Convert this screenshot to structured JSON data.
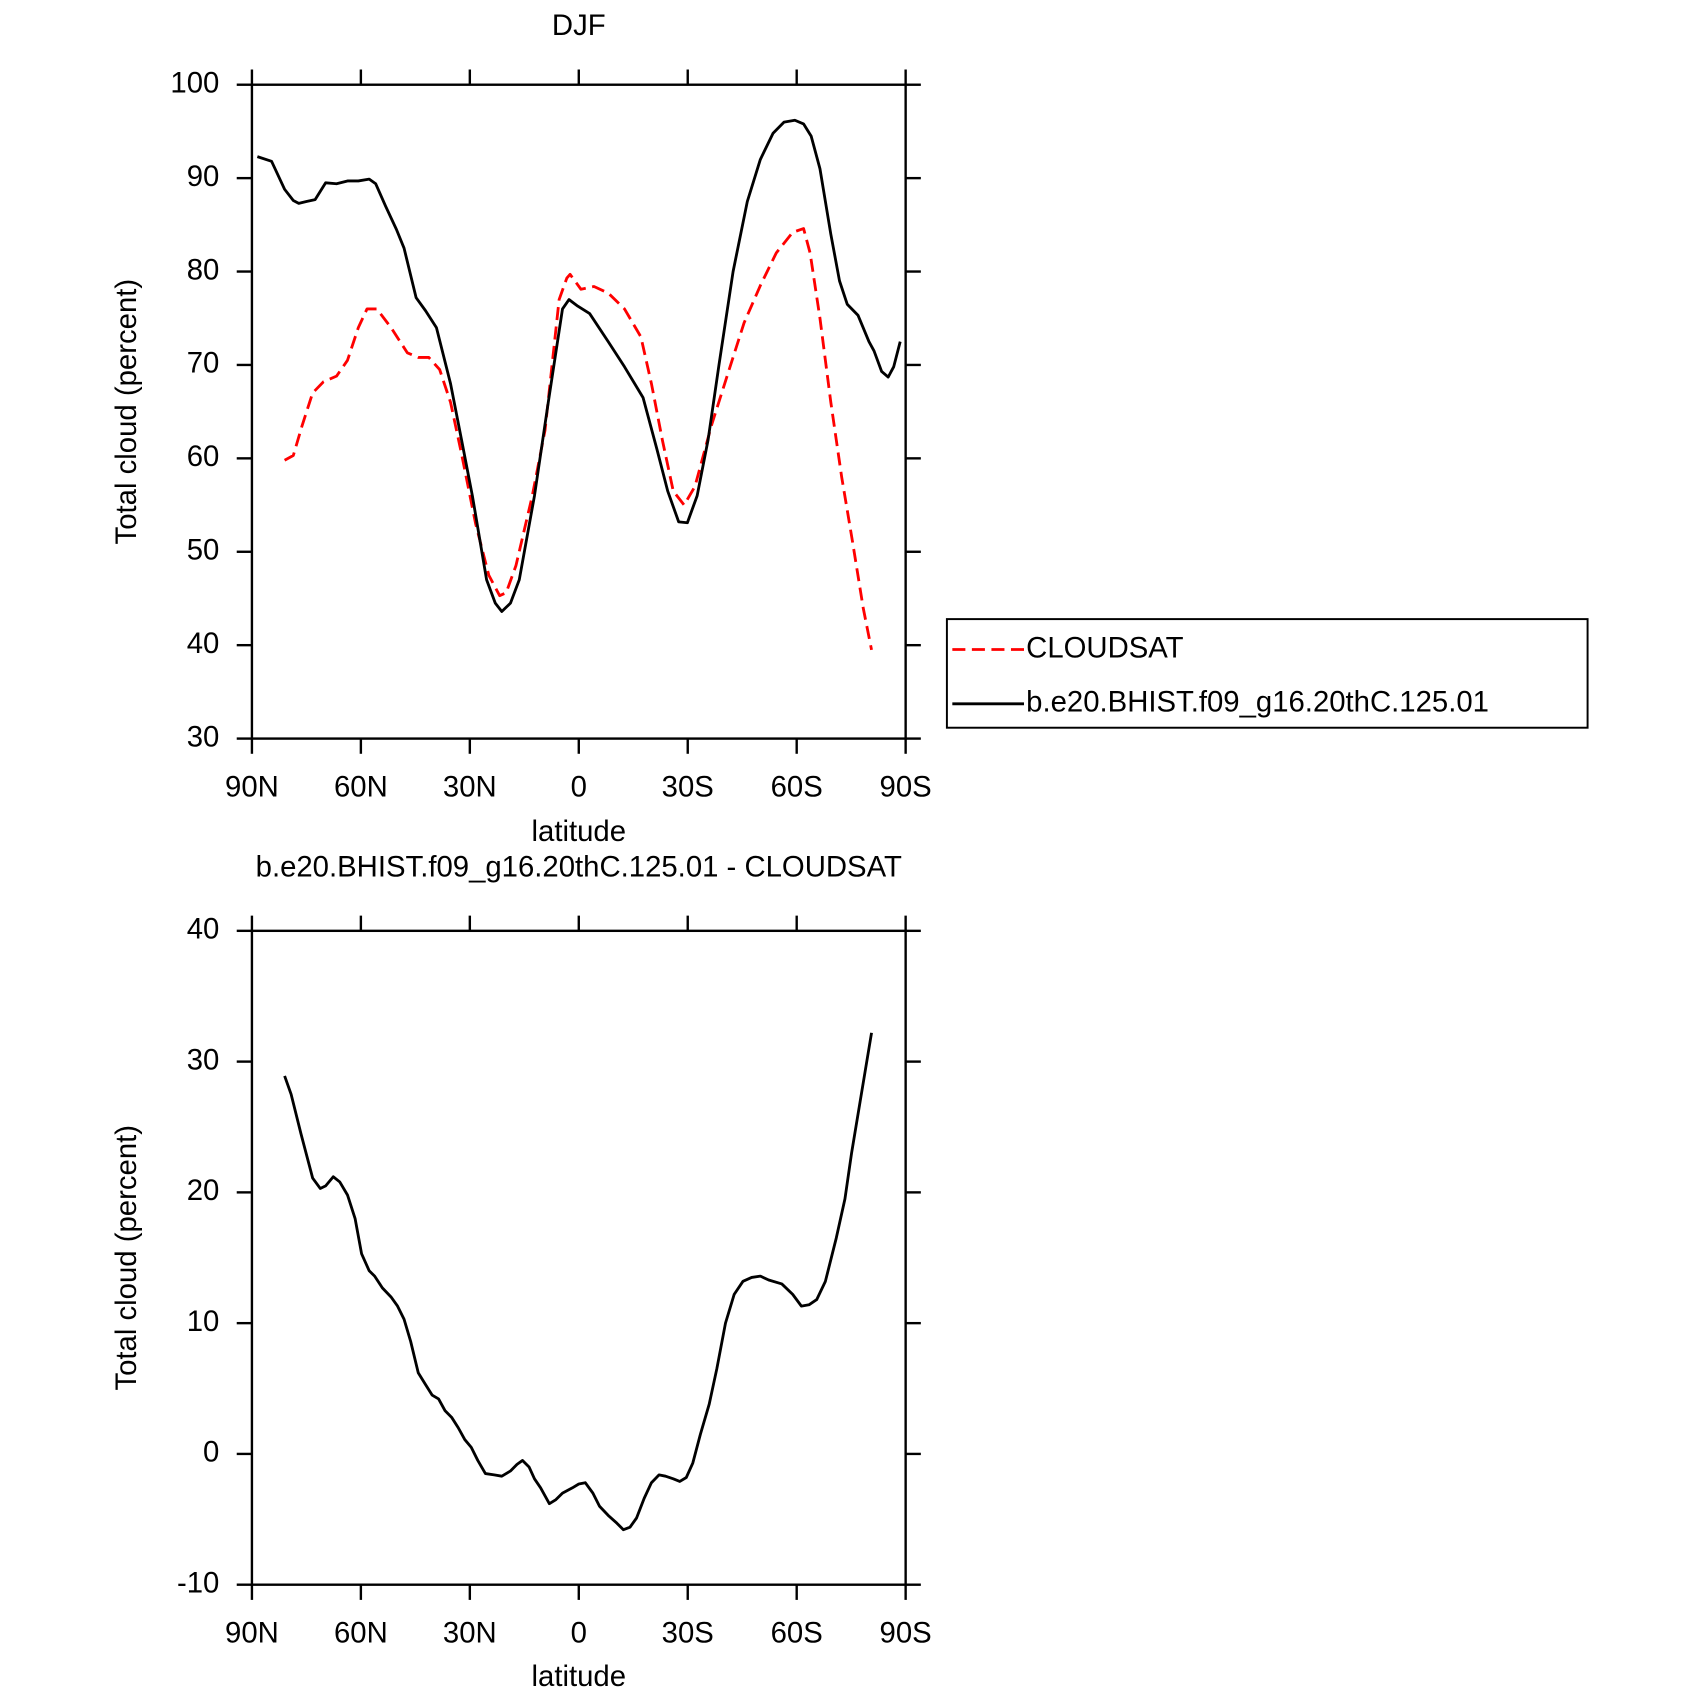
{
  "chart_data": [
    {
      "type": "line",
      "title": "DJF",
      "xlabel": "latitude",
      "ylabel": "Total cloud (percent)",
      "xlim": [
        90,
        -90
      ],
      "xticks": [
        {
          "value": 90,
          "label": "90N"
        },
        {
          "value": 60,
          "label": "60N"
        },
        {
          "value": 30,
          "label": "30N"
        },
        0,
        {
          "value": -30,
          "label": "30S"
        },
        {
          "value": -60,
          "label": "60S"
        },
        {
          "value": -90,
          "label": "90S"
        }
      ],
      "ylim": [
        30,
        100
      ],
      "yticks": [
        30,
        40,
        50,
        60,
        70,
        80,
        90,
        100
      ],
      "legend": "right",
      "series": [
        {
          "name": "CLOUDSAT",
          "color": "#ff0000",
          "linestyle": "dashed",
          "x": [
            81,
            78.6,
            76.2,
            73.3,
            70.3,
            66.7,
            63.7,
            60.7,
            58.3,
            55.6,
            51.7,
            47.2,
            44.2,
            41.3,
            38.3,
            35.3,
            32.3,
            28.4,
            24.8,
            21.8,
            20,
            17.3,
            12.8,
            9.3,
            5.4,
            3.3,
            2.4,
            -0.6,
            -4.2,
            -8.1,
            -12.6,
            -17.1,
            -20,
            -23,
            -26,
            -29,
            -32,
            -36.5,
            -41,
            -45.5,
            -50,
            -54.4,
            -58.9,
            -61.9,
            -63.7,
            -66.4,
            -69.4,
            -72.4,
            -75.4,
            -78.3,
            -80.6
          ],
          "values": [
            59.8,
            60.3,
            63.5,
            67,
            68.2,
            68.8,
            70.5,
            74,
            76,
            76,
            74,
            71.3,
            70.8,
            70.8,
            69.5,
            66,
            60.5,
            53,
            47.5,
            45.3,
            45.6,
            48.5,
            56,
            63,
            77,
            79.3,
            79.7,
            78.1,
            78.4,
            77.7,
            76,
            73,
            68,
            62,
            56.5,
            55,
            57,
            63.5,
            69,
            74.5,
            78.5,
            82,
            84.2,
            84.6,
            82,
            75,
            66,
            58,
            51,
            44,
            39.5
          ]
        },
        {
          "name": "b.e20.BHIST.f09_g16.20thC.125.01",
          "color": "#000000",
          "linestyle": "solid",
          "x": [
            88.5,
            84.6,
            81,
            78.6,
            77.1,
            75,
            72.6,
            69.7,
            66.7,
            63.7,
            60.7,
            57.7,
            55.9,
            53.2,
            50.2,
            48.1,
            44.8,
            42.2,
            39.2,
            35.3,
            32.3,
            29.3,
            25.4,
            23,
            21.2,
            18.8,
            16.4,
            12.2,
            8.4,
            4.5,
            2.7,
            0.3,
            -3,
            -8.1,
            -12.6,
            -17.7,
            -21.5,
            -24.5,
            -27.5,
            -29.9,
            -32.6,
            -35.6,
            -38.6,
            -42.5,
            -46.4,
            -50,
            -53.5,
            -56.5,
            -59.5,
            -61.9,
            -64,
            -66.4,
            -69.4,
            -71.8,
            -73.9,
            -76.9,
            -79.9,
            -81.3,
            -83.4,
            -85.2,
            -86.7,
            -88.5
          ],
          "values": [
            92.3,
            91.8,
            88.8,
            87.6,
            87.3,
            87.5,
            87.7,
            89.5,
            89.4,
            89.7,
            89.7,
            89.9,
            89.4,
            87,
            84.5,
            82.5,
            77.2,
            75.8,
            74,
            68,
            62,
            56,
            47,
            44.5,
            43.6,
            44.5,
            47,
            56,
            66,
            76,
            77,
            76.3,
            75.5,
            72.5,
            69.8,
            66.5,
            61,
            56.5,
            53.2,
            53.1,
            56,
            62,
            70,
            80,
            87.5,
            92,
            94.8,
            96,
            96.2,
            95.8,
            94.5,
            91,
            84,
            79,
            76.5,
            75.3,
            72.5,
            71.5,
            69.3,
            68.7,
            69.8,
            72.5
          ]
        }
      ]
    },
    {
      "type": "line",
      "title": "b.e20.BHIST.f09_g16.20thC.125.01 - CLOUDSAT",
      "xlabel": "latitude",
      "ylabel": "Total cloud (percent)",
      "xlim": [
        90,
        -90
      ],
      "xticks": [
        {
          "value": 90,
          "label": "90N"
        },
        {
          "value": 60,
          "label": "60N"
        },
        {
          "value": 30,
          "label": "30N"
        },
        0,
        {
          "value": -30,
          "label": "30S"
        },
        {
          "value": -60,
          "label": "60S"
        },
        {
          "value": -90,
          "label": "90S"
        }
      ],
      "ylim": [
        -10,
        40
      ],
      "yticks": [
        -10,
        0,
        10,
        20,
        30,
        40
      ],
      "series": [
        {
          "color": "#000000",
          "linestyle": "solid",
          "x": [
            81,
            79.2,
            76.5,
            73.3,
            71.2,
            69.7,
            67.6,
            65.8,
            63.7,
            61.6,
            59.8,
            57.7,
            56.2,
            54.1,
            51.7,
            49.9,
            48.1,
            46.3,
            44.2,
            42.2,
            40.4,
            38.6,
            36.8,
            35,
            33.2,
            31.4,
            29.6,
            27.8,
            25.7,
            23.3,
            21.2,
            18.8,
            17,
            15.5,
            13.7,
            12.2,
            10.5,
            8.1,
            6.3,
            4.5,
            1.8,
            0,
            -1.8,
            -3.9,
            -5.7,
            -8.1,
            -10.5,
            -12.3,
            -14.1,
            -15.9,
            -18,
            -20,
            -22.1,
            -23.9,
            -26,
            -27.8,
            -29.6,
            -31.4,
            -33.5,
            -35.9,
            -38,
            -40.4,
            -42.8,
            -45.2,
            -47.6,
            -50,
            -52.3,
            -55.9,
            -58.9,
            -61.3,
            -63.4,
            -65.5,
            -67.9,
            -70.9,
            -73.3,
            -75.1,
            -77.5,
            -80.6
          ],
          "values": [
            28.9,
            27.5,
            24.5,
            21.1,
            20.3,
            20.5,
            21.2,
            20.8,
            19.8,
            18,
            15.3,
            14,
            13.6,
            12.7,
            12,
            11.3,
            10.3,
            8.6,
            6.2,
            5.3,
            4.5,
            4.2,
            3.3,
            2.8,
            2,
            1.1,
            0.5,
            -0.5,
            -1.5,
            -1.6,
            -1.7,
            -1.3,
            -0.8,
            -0.5,
            -1,
            -1.9,
            -2.6,
            -3.8,
            -3.5,
            -3,
            -2.6,
            -2.3,
            -2.2,
            -3,
            -4,
            -4.7,
            -5.3,
            -5.8,
            -5.6,
            -4.9,
            -3.4,
            -2.2,
            -1.6,
            -1.7,
            -1.9,
            -2.1,
            -1.8,
            -0.7,
            1.5,
            3.8,
            6.5,
            10,
            12.2,
            13.2,
            13.5,
            13.6,
            13.3,
            13,
            12.2,
            11.3,
            11.4,
            11.8,
            13.2,
            16.5,
            19.5,
            23,
            27,
            32.2
          ]
        }
      ]
    }
  ]
}
